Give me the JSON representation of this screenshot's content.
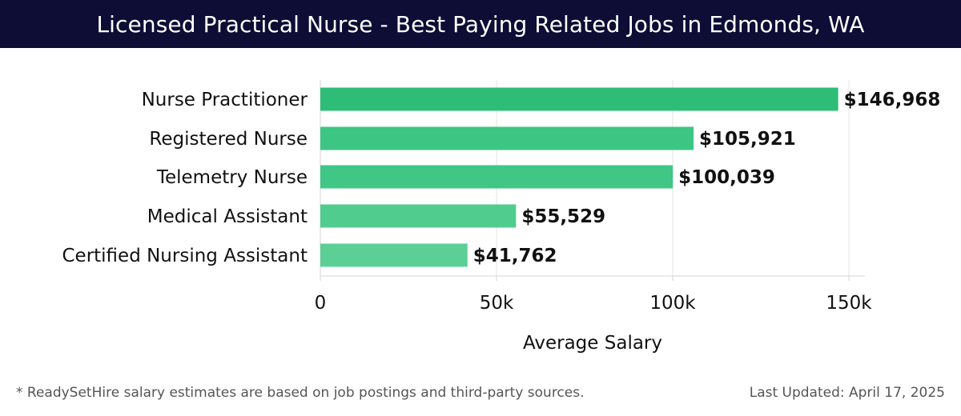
{
  "header": {
    "title": "Licensed Practical Nurse - Best Paying Related Jobs in Edmonds, WA"
  },
  "colors": {
    "header_bg": "#0d0d35",
    "bar_colors": [
      "#2ebd76",
      "#3cc583",
      "#40c685",
      "#50cd8e",
      "#5ccf96"
    ]
  },
  "chart_data": {
    "type": "bar",
    "orientation": "horizontal",
    "categories": [
      "Nurse Practitioner",
      "Registered Nurse",
      "Telemetry Nurse",
      "Medical Assistant",
      "Certified Nursing Assistant"
    ],
    "values": [
      146968,
      105921,
      100039,
      55529,
      41762
    ],
    "value_labels": [
      "$146,968",
      "$105,921",
      "$100,039",
      "$55,529",
      "$41,762"
    ],
    "xticks": [
      0,
      50000,
      100000,
      150000
    ],
    "xtick_labels": [
      "0",
      "50k",
      "100k",
      "150k"
    ],
    "xlim": [
      0,
      155000
    ],
    "xlabel": "Average Salary",
    "ylabel": "",
    "grid": true
  },
  "footer": {
    "note": "* ReadySetHire salary estimates are based on job postings and third-party sources.",
    "updated": "Last Updated: April 17, 2025"
  }
}
